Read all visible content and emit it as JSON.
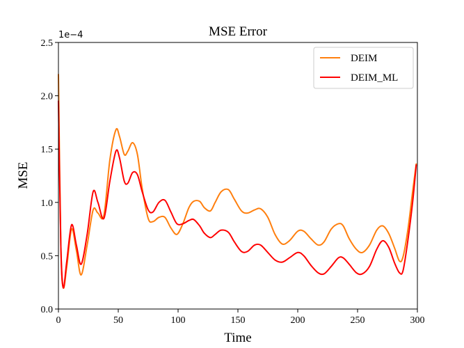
{
  "chart_data": {
    "type": "line",
    "title": "MSE Error",
    "xlabel": "Time",
    "ylabel": "MSE",
    "xlim": [
      0,
      300
    ],
    "ylim": [
      0,
      2.5
    ],
    "y_scale_label": "1e−4",
    "x_ticks": [
      0,
      50,
      100,
      150,
      200,
      250,
      300
    ],
    "x_tick_labels": [
      "0",
      "50",
      "100",
      "150",
      "200",
      "250",
      "300"
    ],
    "y_ticks": [
      0.0,
      0.5,
      1.0,
      1.5,
      2.0,
      2.5
    ],
    "y_tick_labels": [
      "0.0",
      "0.5",
      "1.0",
      "1.5",
      "2.0",
      "2.5"
    ],
    "grid": false,
    "legend_position": "top-right",
    "series": [
      {
        "name": "DEIM",
        "color": "#ff7f0e",
        "x": [
          0,
          2,
          4,
          7,
          11,
          15,
          19,
          24,
          29,
          33,
          38,
          43,
          48,
          51,
          55,
          58,
          62,
          66,
          70,
          75,
          79,
          84,
          89,
          94,
          99,
          104,
          109,
          113,
          118,
          122,
          127,
          131,
          136,
          142,
          147,
          153,
          158,
          164,
          169,
          175,
          181,
          187,
          193,
          200,
          205,
          211,
          217,
          222,
          228,
          234,
          238,
          243,
          249,
          254,
          260,
          266,
          271,
          276,
          281,
          285,
          288,
          292,
          296,
          299
        ],
        "y": [
          2.2,
          0.6,
          0.2,
          0.4,
          0.75,
          0.55,
          0.32,
          0.6,
          0.93,
          0.9,
          0.88,
          1.4,
          1.68,
          1.62,
          1.45,
          1.48,
          1.56,
          1.45,
          1.13,
          0.85,
          0.82,
          0.86,
          0.86,
          0.76,
          0.7,
          0.8,
          0.95,
          1.01,
          1.01,
          0.95,
          0.92,
          1.0,
          1.1,
          1.12,
          1.03,
          0.92,
          0.9,
          0.93,
          0.94,
          0.86,
          0.7,
          0.61,
          0.64,
          0.73,
          0.73,
          0.66,
          0.6,
          0.63,
          0.75,
          0.8,
          0.78,
          0.66,
          0.56,
          0.53,
          0.6,
          0.74,
          0.78,
          0.71,
          0.57,
          0.45,
          0.49,
          0.74,
          1.1,
          1.36
        ]
      },
      {
        "name": "DEIM_ML",
        "color": "#ff0000",
        "x": [
          0,
          2,
          4,
          7,
          11,
          15,
          19,
          24,
          29,
          33,
          38,
          43,
          48,
          51,
          55,
          58,
          62,
          66,
          70,
          75,
          79,
          84,
          89,
          94,
          99,
          104,
          109,
          113,
          118,
          122,
          127,
          131,
          136,
          142,
          147,
          153,
          158,
          164,
          169,
          175,
          181,
          187,
          193,
          200,
          205,
          211,
          217,
          222,
          228,
          234,
          238,
          243,
          249,
          254,
          260,
          266,
          271,
          276,
          281,
          285,
          288,
          292,
          296,
          299
        ],
        "y": [
          1.95,
          0.6,
          0.2,
          0.45,
          0.79,
          0.6,
          0.42,
          0.7,
          1.1,
          1.0,
          0.85,
          1.2,
          1.48,
          1.42,
          1.2,
          1.18,
          1.28,
          1.26,
          1.1,
          0.93,
          0.91,
          1.0,
          1.02,
          0.91,
          0.8,
          0.8,
          0.83,
          0.84,
          0.78,
          0.71,
          0.67,
          0.7,
          0.74,
          0.72,
          0.63,
          0.54,
          0.54,
          0.6,
          0.6,
          0.53,
          0.46,
          0.44,
          0.48,
          0.53,
          0.5,
          0.41,
          0.34,
          0.33,
          0.4,
          0.48,
          0.48,
          0.42,
          0.34,
          0.33,
          0.4,
          0.56,
          0.64,
          0.58,
          0.43,
          0.34,
          0.36,
          0.64,
          1.0,
          1.35
        ]
      }
    ]
  }
}
